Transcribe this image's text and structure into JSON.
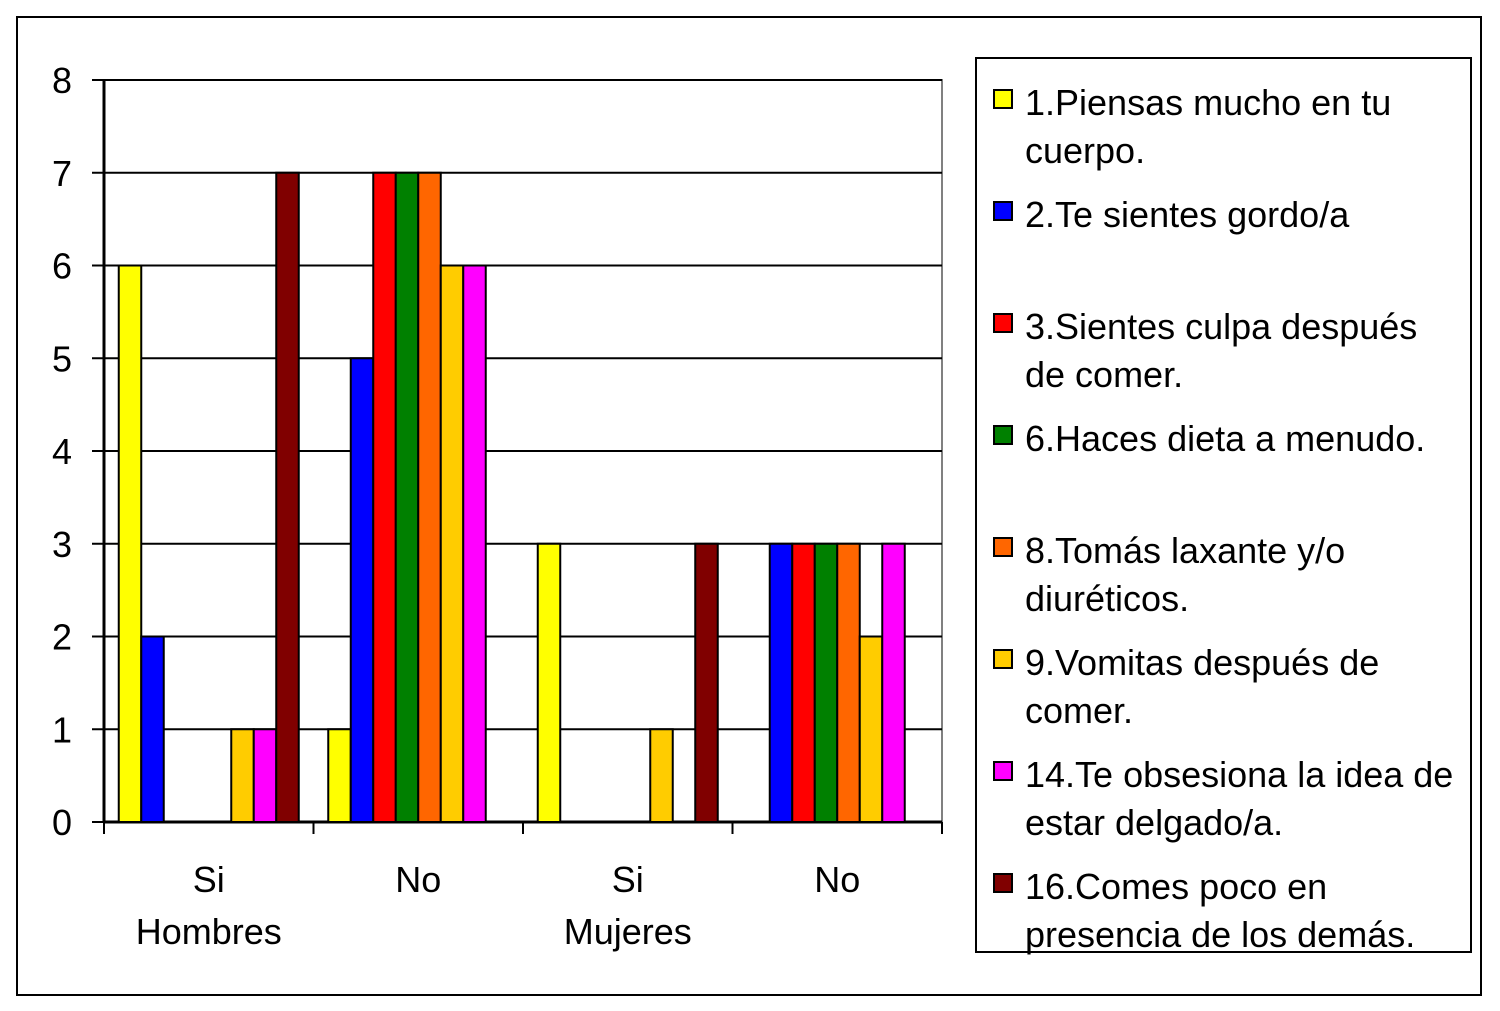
{
  "chart_data": {
    "type": "bar",
    "title": "",
    "xlabel": "",
    "ylabel": "",
    "ylim": [
      0,
      8
    ],
    "yticks": [
      "0",
      "1",
      "2",
      "3",
      "4",
      "5",
      "6",
      "7",
      "8"
    ],
    "grid": "horizontal",
    "legend_placement": "right",
    "categories": [
      "Si",
      "No",
      "Si",
      "No"
    ],
    "groups": [
      {
        "label": "Hombres",
        "categories": [
          "Si",
          "No"
        ]
      },
      {
        "label": "Mujeres",
        "categories": [
          "Si",
          "No"
        ]
      }
    ],
    "series": [
      {
        "name": "1.Piensas mucho en tu cuerpo.",
        "color": "#ffff00",
        "values": [
          6,
          1,
          3,
          0
        ]
      },
      {
        "name": "2.Te sientes gordo/a",
        "color": "#0000ff",
        "values": [
          2,
          5,
          0,
          3
        ]
      },
      {
        "name": "3.Sientes culpa después de comer.",
        "color": "#ff0000",
        "values": [
          0,
          7,
          0,
          3
        ]
      },
      {
        "name": "6.Haces dieta a menudo.",
        "color": "#008000",
        "values": [
          0,
          7,
          0,
          3
        ]
      },
      {
        "name": "8.Tomás laxante y/o diuréticos.",
        "color": "#ff6600",
        "values": [
          0,
          7,
          0,
          3
        ]
      },
      {
        "name": "9.Vomitas después de comer.",
        "color": "#ffcc00",
        "values": [
          1,
          6,
          1,
          2
        ]
      },
      {
        "name": "14.Te obsesiona la idea de estar delgado/a.",
        "color": "#ff00ff",
        "values": [
          1,
          6,
          0,
          3
        ]
      },
      {
        "name": "16.Comes poco en presencia de los demás.",
        "color": "#800000",
        "values": [
          7,
          0,
          3,
          0
        ]
      }
    ]
  }
}
